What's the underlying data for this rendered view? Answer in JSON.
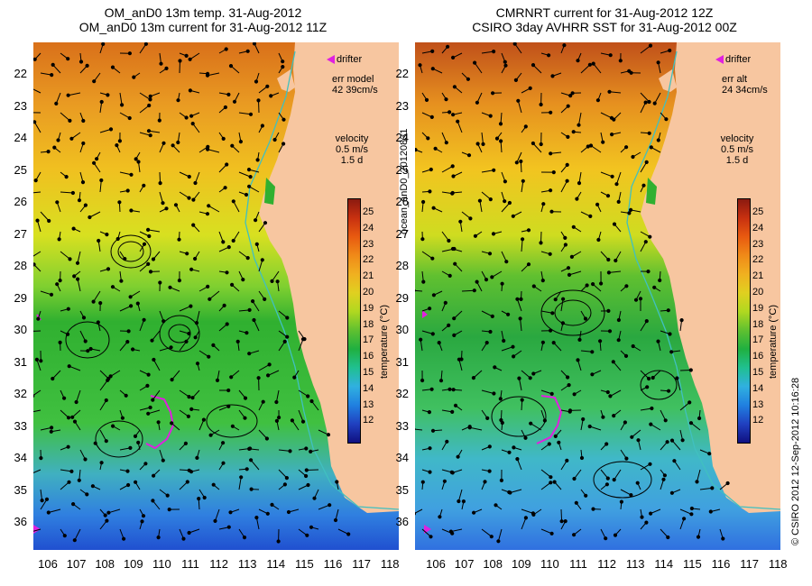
{
  "left_panel": {
    "title_line1": "OM_anD0 13m temp. 31-Aug-2012",
    "title_line2": "OM_anD0 13m current for 31-Aug-2012 11Z",
    "err_label": "err model",
    "err_value": "42 39cm/s"
  },
  "right_panel": {
    "title_line1": "CMRNRT current for 31-Aug-2012 12Z",
    "title_line2": "CSIRO 3day AVHRR SST for 31-Aug-2012 00Z",
    "err_label": "err alt",
    "err_value": "24 34cm/s"
  },
  "legend": {
    "drifter": "drifter",
    "velocity": "velocity",
    "velocity_scale": "0.5 m/s",
    "velocity_time": "1.5 d",
    "colorbar_title": "temperature (°C)",
    "colorbar_ticks": [
      "25",
      "24",
      "23",
      "22",
      "21",
      "20",
      "19",
      "18",
      "17",
      "16",
      "15",
      "14",
      "13",
      "12"
    ]
  },
  "axes": {
    "lat_ticks": [
      "22",
      "23",
      "24",
      "25",
      "26",
      "27",
      "28",
      "29",
      "30",
      "31",
      "32",
      "33",
      "34",
      "35",
      "36"
    ],
    "lon_ticks": [
      "106",
      "107",
      "108",
      "109",
      "110",
      "111",
      "112",
      "113",
      "114",
      "115",
      "116",
      "117",
      "118"
    ]
  },
  "side_labels": {
    "file_id": "ocean_anD0_20120831",
    "credit": "© CSIRO 2012   12-Sep-2012 10:16:28"
  },
  "colors": {
    "land": "#f7c6a0",
    "drifter": "#e020e0",
    "coastline_contour": "#40c0c0"
  }
}
